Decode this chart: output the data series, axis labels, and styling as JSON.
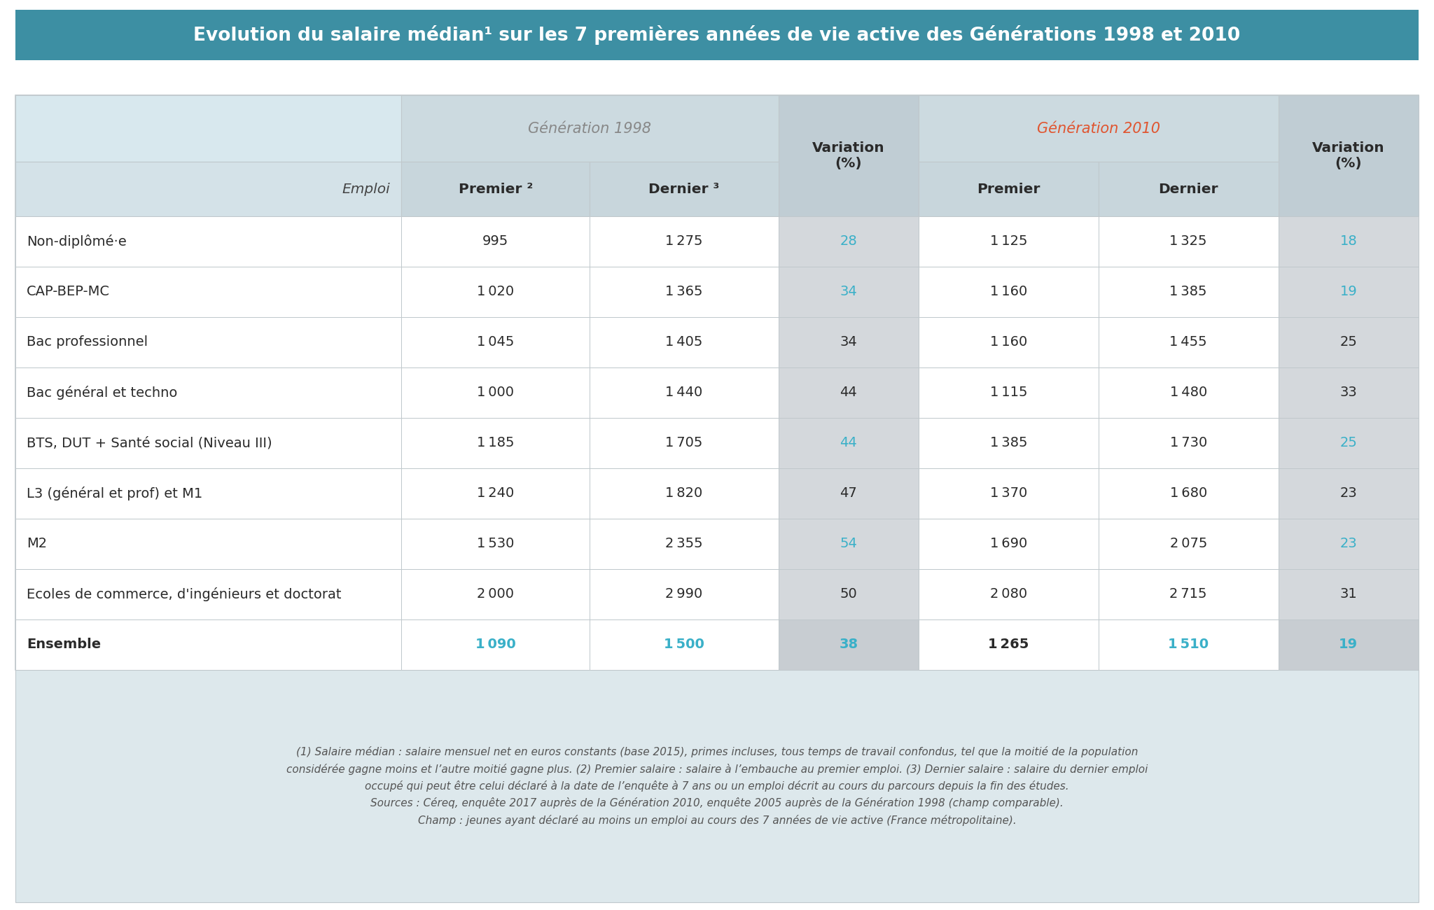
{
  "title": "Evolution du salaire médian¹ sur les 7 premières années de vie active des Générations 1998 et 2010",
  "title_bg": "#3d8fa3",
  "title_color": "#ffffff",
  "page_bg": "#ffffff",
  "table_outer_bg": "#ffffff",
  "header1_col0_bg": "#d8e8ee",
  "header1_gen98_bg": "#ccdae0",
  "header1_variation_bg": "#c0cdd4",
  "header1_gen2010_bg": "#ccdae0",
  "header2_col0_bg": "#d4e2e8",
  "header2_gen98_bg": "#c8d6dc",
  "header2_variation_bg": "#b8c8d0",
  "data_row_bg": "#ffffff",
  "data_variation_bg": "#d4d8dc",
  "ensemble_row_bg": "#ffffff",
  "ensemble_variation_bg": "#c8cdd2",
  "row_border_color": "#c0c8cc",
  "gen1998_label_color": "#888888",
  "gen2010_label_color": "#e05530",
  "variation_blue_color": "#3ab0c8",
  "text_dark": "#2a2a2a",
  "text_medium": "#444444",
  "footnote_color": "#555555",
  "gen1998_label": "Génération 1998",
  "gen2010_label": "Génération 2010",
  "rows": [
    [
      "Non-diplômé·e",
      "995",
      "1 275",
      "28",
      "1 125",
      "1 325",
      "18"
    ],
    [
      "CAP-BEP-MC",
      "1 020",
      "1 365",
      "34",
      "1 160",
      "1 385",
      "19"
    ],
    [
      "Bac professionnel",
      "1 045",
      "1 405",
      "34",
      "1 160",
      "1 455",
      "25"
    ],
    [
      "Bac général et techno",
      "1 000",
      "1 440",
      "44",
      "1 115",
      "1 480",
      "33"
    ],
    [
      "BTS, DUT + Santé social (Niveau III)",
      "1 185",
      "1 705",
      "44",
      "1 385",
      "1 730",
      "25"
    ],
    [
      "L3 (général et prof) et M1",
      "1 240",
      "1 820",
      "47",
      "1 370",
      "1 680",
      "23"
    ],
    [
      "M2",
      "1 530",
      "2 355",
      "54",
      "1 690",
      "2 075",
      "23"
    ],
    [
      "Ecoles de commerce, d'ingénieurs et doctorat",
      "2 000",
      "2 990",
      "50",
      "2 080",
      "2 715",
      "31"
    ],
    [
      "Ensemble",
      "1 090",
      "1 500",
      "38",
      "1 265",
      "1 510",
      "19"
    ]
  ],
  "variation_blue_rows_98": [
    0,
    1,
    4,
    6
  ],
  "variation_blue_rows_10": [
    0,
    1,
    4,
    6
  ],
  "ensemble_row_idx": 8,
  "footnote_lines": [
    "(1) Salaire médian : salaire mensuel net en euros constants (base 2015), primes incluses, tous temps de travail confondus, tel que la moitié de la population",
    "considérée gagne moins et l’autre moitié gagne plus. (2) Premier salaire : salaire à l’embauche au premier emploi. (3) Dernier salaire : salaire du dernier emploi",
    "occupé qui peut être celui déclaré à la date de l’enquête à 7 ans ou un emploi décrit au cours du parcours depuis la fin des études.",
    "Sources : Céreq, enquête 2017 auprès de la Génération 2010, enquête 2005 auprès de la Génération 1998 (champ comparable).",
    "Champ : jeunes ayant déclaré au moins un emploi au cours des 7 années de vie active (France métropolitaine)."
  ]
}
